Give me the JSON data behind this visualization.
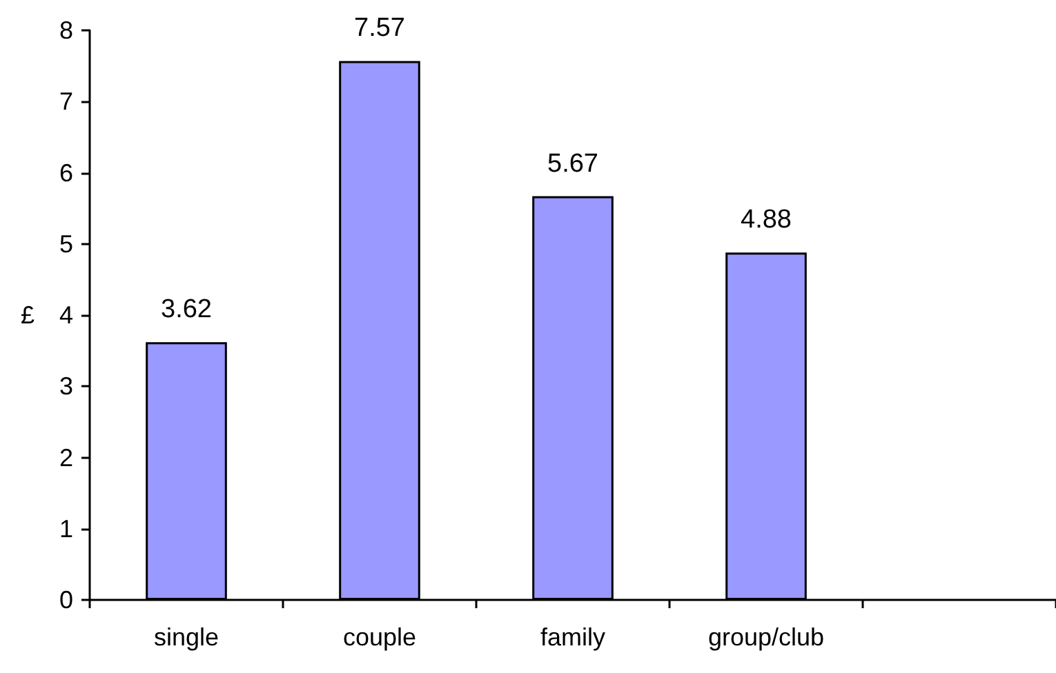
{
  "chart_data": {
    "type": "bar",
    "ylabel": "£",
    "categories": [
      "single",
      "couple",
      "family",
      "group/club",
      null
    ],
    "values": [
      3.62,
      7.57,
      5.67,
      4.88,
      null
    ],
    "color": "#9999ff",
    "ylim": [
      0,
      8
    ],
    "yticks": [
      0,
      1,
      2,
      3,
      4,
      5,
      6,
      7,
      8
    ],
    "grid": false,
    "data_labels": true
  }
}
